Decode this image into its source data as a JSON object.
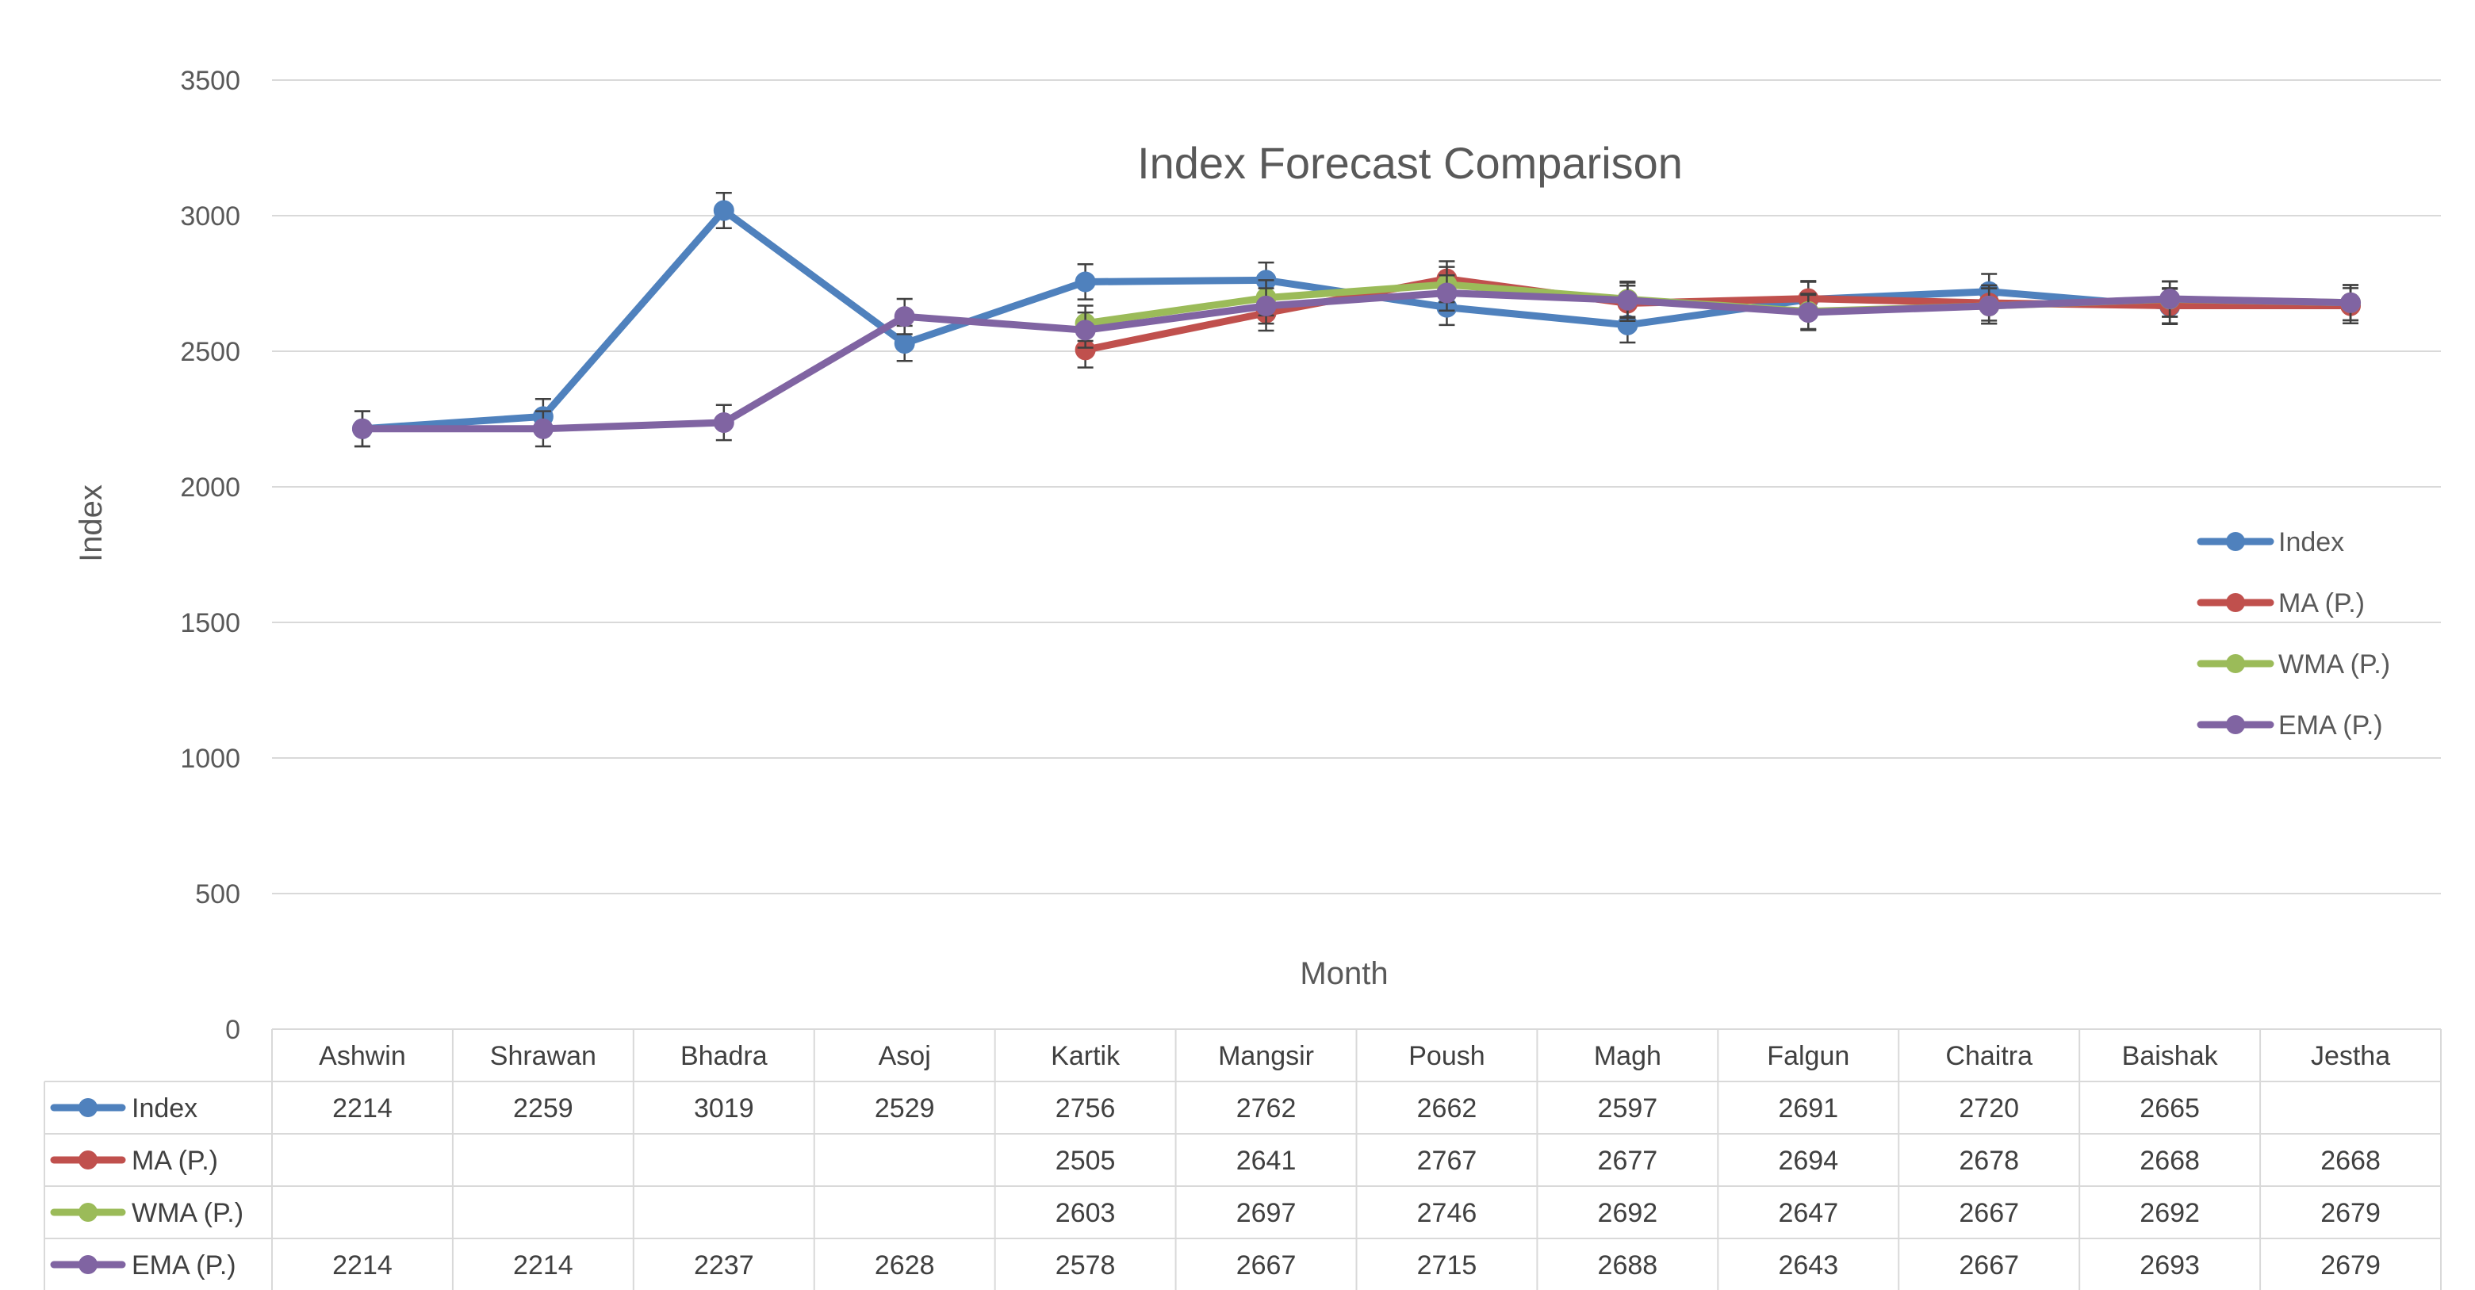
{
  "chart_data": {
    "type": "line",
    "title": "Index Forecast Comparison",
    "xlabel": "Month",
    "ylabel": "Index",
    "ylim": [
      0,
      3500
    ],
    "yticks": [
      "0",
      "500",
      "1000",
      "1500",
      "2000",
      "2500",
      "3000",
      "3500"
    ],
    "grid": true,
    "legend_position": "right",
    "error_bars": true,
    "data_table": true,
    "categories": [
      "Ashwin",
      "Shrawan",
      "Bhadra",
      "Asoj",
      "Kartik",
      "Mangsir",
      "Poush",
      "Magh",
      "Falgun",
      "Chaitra",
      "Baishak",
      "Jestha"
    ],
    "series": [
      {
        "name": "Index",
        "color": "#4f81bd",
        "values": [
          2214,
          2259,
          3019,
          2529,
          2756,
          2762,
          2662,
          2597,
          2691,
          2720,
          2665,
          null
        ]
      },
      {
        "name": "MA (P.)",
        "color": "#c0504d",
        "values": [
          null,
          null,
          null,
          null,
          2505,
          2641,
          2767,
          2677,
          2694,
          2678,
          2668,
          2668
        ]
      },
      {
        "name": "WMA (P.)",
        "color": "#9bbb59",
        "values": [
          null,
          null,
          null,
          null,
          2603,
          2697,
          2746,
          2692,
          2647,
          2667,
          2692,
          2679
        ]
      },
      {
        "name": "EMA (P.)",
        "color": "#8064a2",
        "values": [
          2214,
          2214,
          2237,
          2628,
          2578,
          2667,
          2715,
          2688,
          2643,
          2667,
          2693,
          2679
        ]
      }
    ]
  }
}
